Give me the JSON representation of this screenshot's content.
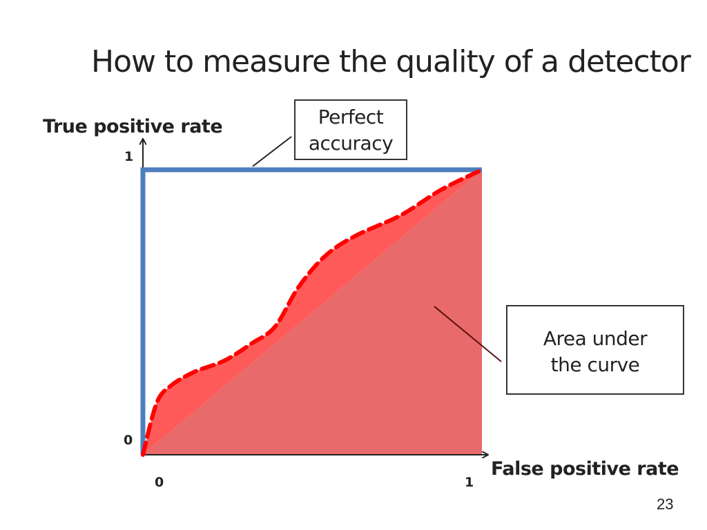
{
  "slide": {
    "title": "How to measure the quality of a detector",
    "page_number": "23"
  },
  "callouts": {
    "perfect": {
      "line1": "Perfect",
      "line2": "accuracy"
    },
    "auc": {
      "line1": "Area under",
      "line2": "the curve"
    }
  },
  "colors": {
    "perfect_line": "#4f7fbf",
    "roc_curve": "#ff0000",
    "auc_fill": "#e86a6a",
    "curve_fill": "#ff5a5a"
  },
  "chart_data": {
    "type": "area",
    "title": "",
    "xlabel": "False positive rate",
    "ylabel": "True positive rate",
    "xlim": [
      0,
      1
    ],
    "ylim": [
      0,
      1
    ],
    "x_ticks": [
      "0",
      "1"
    ],
    "y_ticks": [
      "0",
      "1"
    ],
    "grid": false,
    "series": [
      {
        "name": "Perfect accuracy",
        "x": [
          0,
          0,
          1
        ],
        "y": [
          0,
          1,
          1
        ]
      },
      {
        "name": "",
        "x": [
          0,
          0.04,
          0.08,
          0.15,
          0.24,
          0.32,
          0.39,
          0.46,
          0.54,
          0.63,
          0.76,
          0.88,
          1.0
        ],
        "y": [
          0,
          0.18,
          0.24,
          0.29,
          0.33,
          0.39,
          0.45,
          0.59,
          0.7,
          0.77,
          0.84,
          0.93,
          1.0
        ]
      }
    ]
  }
}
